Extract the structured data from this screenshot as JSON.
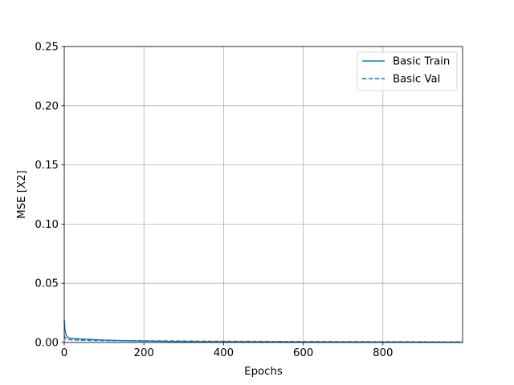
{
  "chart_data": {
    "type": "line",
    "title": "",
    "xlabel": "Epochs",
    "ylabel": "MSE [X2]",
    "xlim": [
      0,
      1000
    ],
    "ylim": [
      0,
      0.25
    ],
    "xticks": [
      0,
      200,
      400,
      600,
      800
    ],
    "xtick_labels": [
      "0",
      "200",
      "400",
      "600",
      "800"
    ],
    "yticks": [
      0,
      0.05,
      0.1,
      0.15,
      0.2,
      0.25
    ],
    "ytick_labels": [
      "0.00",
      "0.05",
      "0.10",
      "0.15",
      "0.20",
      "0.25"
    ],
    "grid": true,
    "legend_position": "top-right",
    "series": [
      {
        "name": "Basic Train",
        "style": "solid",
        "color": "#1f77b4",
        "x": [
          0,
          2,
          5,
          10,
          20,
          40,
          60,
          100,
          150,
          200,
          300,
          400,
          600,
          800,
          999
        ],
        "y": [
          0.019,
          0.01,
          0.006,
          0.004,
          0.0035,
          0.003,
          0.0027,
          0.002,
          0.0015,
          0.0012,
          0.0008,
          0.0006,
          0.0004,
          0.0003,
          0.0002
        ]
      },
      {
        "name": "Basic Val",
        "style": "dashed",
        "color": "#1f77b4",
        "x": [
          0,
          2,
          5,
          10,
          20,
          40,
          60,
          100,
          150,
          200,
          300,
          400,
          600,
          800,
          999
        ],
        "y": [
          0.006,
          0.004,
          0.003,
          0.0025,
          0.0022,
          0.002,
          0.0018,
          0.0016,
          0.0015,
          0.0014,
          0.0012,
          0.001,
          0.0008,
          0.0006,
          0.0005
        ]
      }
    ]
  }
}
